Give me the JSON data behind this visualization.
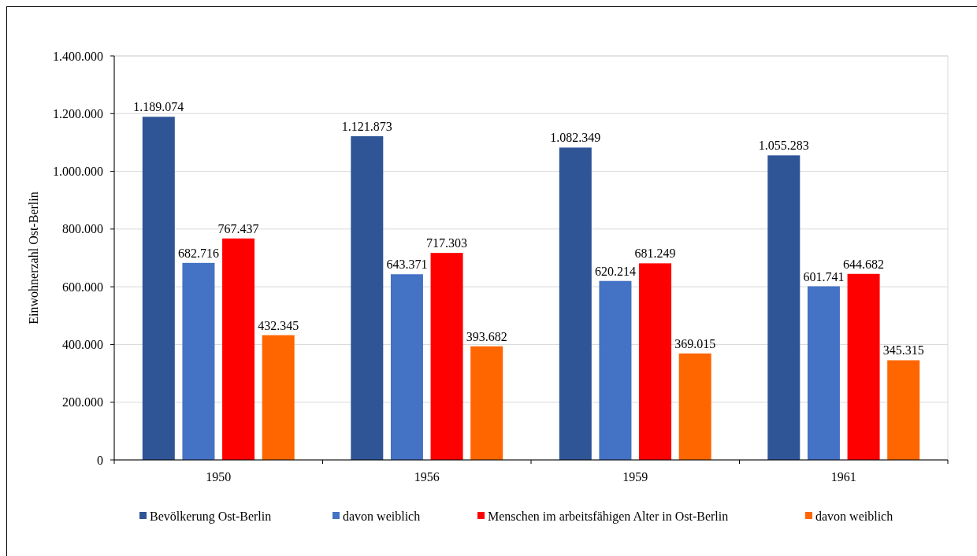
{
  "chart_data": {
    "type": "bar",
    "ylabel": "Einwohnerzahl Ost-Berlin",
    "categories": [
      "1950",
      "1956",
      "1959",
      "1961"
    ],
    "series": [
      {
        "name": "Bevölkerung Ost-Berlin",
        "color": "#2f5597",
        "values": [
          1189074,
          1121873,
          1082349,
          1055283
        ],
        "value_labels": [
          "1.189.074",
          "1.121.873",
          "1.082.349",
          "1.055.283"
        ]
      },
      {
        "name": "davon weiblich",
        "color": "#4472c4",
        "values": [
          682716,
          643371,
          620214,
          601741
        ],
        "value_labels": [
          "682.716",
          "643.371",
          "620.214",
          "601.741"
        ]
      },
      {
        "name": "Menschen im arbeitsfähigen Alter in Ost-Berlin",
        "color": "#ff0000",
        "values": [
          767437,
          717303,
          681249,
          644682
        ],
        "value_labels": [
          "767.437",
          "717.303",
          "681.249",
          "644.682"
        ]
      },
      {
        "name": "davon weiblich",
        "color": "#ff6600",
        "values": [
          432345,
          393682,
          369015,
          345315
        ],
        "value_labels": [
          "432.345",
          "393.682",
          "369.015",
          "345.315"
        ]
      }
    ],
    "ylim": [
      0,
      1400000
    ],
    "yticks": [
      {
        "value": 0,
        "label": "0"
      },
      {
        "value": 200000,
        "label": "200.000"
      },
      {
        "value": 400000,
        "label": "400.000"
      },
      {
        "value": 600000,
        "label": "600.000"
      },
      {
        "value": 800000,
        "label": "800.000"
      },
      {
        "value": 1000000,
        "label": "1.000.000"
      },
      {
        "value": 1200000,
        "label": "1.200.000"
      },
      {
        "value": 1400000,
        "label": "1.400.000"
      }
    ],
    "grid": "y",
    "legend": "bottom"
  }
}
